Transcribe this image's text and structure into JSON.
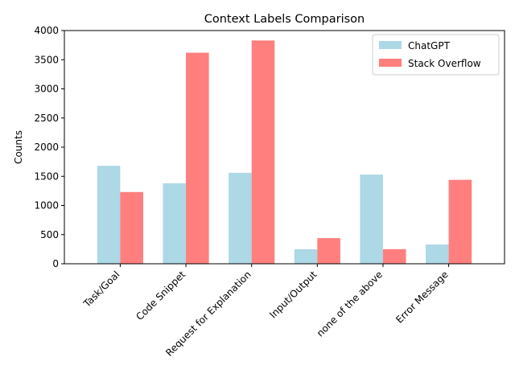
{
  "chart_data": {
    "type": "bar",
    "title": "Context Labels Comparison",
    "xlabel": "",
    "ylabel": "Counts",
    "categories": [
      "Task/Goal",
      "Code Snippet",
      "Request for Explanation",
      "Input/Output",
      "none of the above",
      "Error Message"
    ],
    "series": [
      {
        "name": "ChatGPT",
        "color": "#add8e6",
        "values": [
          1680,
          1380,
          1560,
          250,
          1530,
          330
        ]
      },
      {
        "name": "Stack Overflow",
        "color": "#ff7f7f",
        "values": [
          1230,
          3620,
          3830,
          440,
          250,
          1440
        ]
      }
    ],
    "ylim": [
      0,
      4000
    ],
    "yticks": [
      0,
      500,
      1000,
      1500,
      2000,
      2500,
      3000,
      3500,
      4000
    ],
    "grid": false,
    "legend_position": "top-right"
  }
}
